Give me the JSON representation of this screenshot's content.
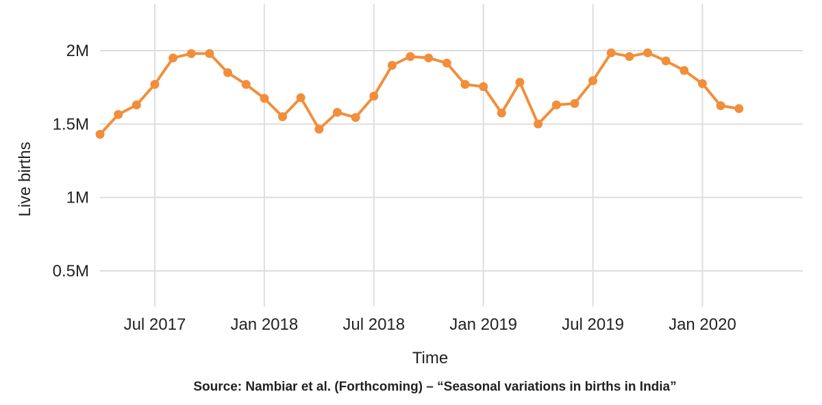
{
  "chart_data": {
    "type": "line",
    "ylabel": "Live births",
    "xlabel": "Time",
    "source": "Source: Nambiar et al. (Forthcoming) – “Seasonal variations in births in India”",
    "ylim": [
      0.3,
      2.3
    ],
    "y_ticks": [
      {
        "value": 0.5,
        "label": "0.5M"
      },
      {
        "value": 1.0,
        "label": "1M"
      },
      {
        "value": 1.5,
        "label": "1.5M"
      },
      {
        "value": 2.0,
        "label": "2M"
      }
    ],
    "x_ticks": [
      {
        "value": "2017-07",
        "label": "Jul 2017"
      },
      {
        "value": "2018-01",
        "label": "Jan 2018"
      },
      {
        "value": "2018-07",
        "label": "Jul 2018"
      },
      {
        "value": "2019-01",
        "label": "Jan 2019"
      },
      {
        "value": "2019-07",
        "label": "Jul 2019"
      },
      {
        "value": "2020-01",
        "label": "Jan 2020"
      }
    ],
    "xlim": [
      "2017-04",
      "2020-07"
    ],
    "grid": true,
    "series_color": "#f28e3a",
    "series": [
      {
        "name": "",
        "x": [
          "2017-04",
          "2017-05",
          "2017-06",
          "2017-07",
          "2017-08",
          "2017-09",
          "2017-10",
          "2017-11",
          "2017-12",
          "2018-01",
          "2018-02",
          "2018-03",
          "2018-04",
          "2018-05",
          "2018-06",
          "2018-07",
          "2018-08",
          "2018-09",
          "2018-10",
          "2018-11",
          "2018-12",
          "2019-01",
          "2019-02",
          "2019-03",
          "2019-04",
          "2019-05",
          "2019-06",
          "2019-07",
          "2019-08",
          "2019-09",
          "2019-10",
          "2019-11",
          "2019-12",
          "2020-01",
          "2020-02",
          "2020-03"
        ],
        "values": [
          1.43,
          1.565,
          1.63,
          1.77,
          1.95,
          1.98,
          1.98,
          1.85,
          1.77,
          1.675,
          1.55,
          1.68,
          1.465,
          1.58,
          1.545,
          1.69,
          1.9,
          1.96,
          1.95,
          1.915,
          1.77,
          1.755,
          1.575,
          1.785,
          1.5,
          1.63,
          1.64,
          1.795,
          1.985,
          1.96,
          1.985,
          1.93,
          1.865,
          1.775,
          1.625,
          1.605
        ]
      }
    ]
  }
}
